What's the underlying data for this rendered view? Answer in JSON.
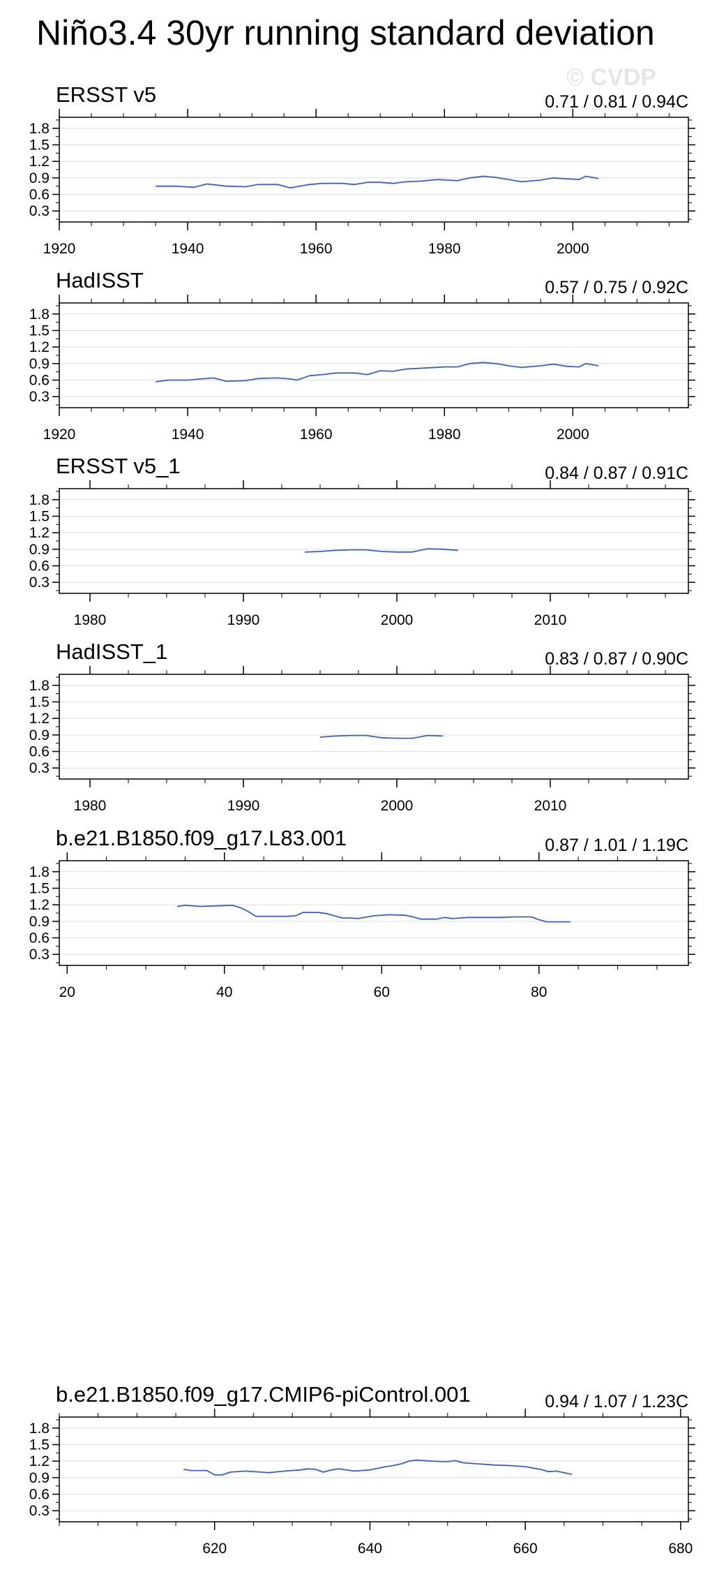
{
  "title": "Niño3.4 30yr running standard deviation",
  "watermark": "© CVDP",
  "colors": {
    "line": "#3a5fcd",
    "grid": "#dddddd",
    "frame": "#000000"
  },
  "chart_data": [
    {
      "type": "line",
      "title": "ERSST v5",
      "stats": "0.71 / 0.81 / 0.94C",
      "xlim": [
        1920,
        2018
      ],
      "ylim": [
        0.1,
        2.0
      ],
      "xticks": [
        1920,
        1940,
        1960,
        1980,
        2000
      ],
      "yticks": [
        0.3,
        0.6,
        0.9,
        1.2,
        1.5,
        1.8
      ],
      "ytick_labels": [
        "0.3",
        "0.6",
        "0.9",
        "1.2",
        "1.5",
        "1.8"
      ],
      "grid": true,
      "x": [
        1935,
        1938,
        1941,
        1943,
        1946,
        1949,
        1951,
        1954,
        1956,
        1957,
        1959,
        1961,
        1964,
        1966,
        1968,
        1970,
        1972,
        1974,
        1976,
        1979,
        1982,
        1984,
        1986,
        1988,
        1990,
        1992,
        1995,
        1997,
        1998,
        2001,
        2002,
        2004
      ],
      "y": [
        0.75,
        0.75,
        0.73,
        0.79,
        0.75,
        0.74,
        0.78,
        0.78,
        0.72,
        0.74,
        0.78,
        0.8,
        0.8,
        0.78,
        0.82,
        0.82,
        0.8,
        0.83,
        0.84,
        0.87,
        0.85,
        0.9,
        0.93,
        0.91,
        0.87,
        0.83,
        0.86,
        0.9,
        0.89,
        0.87,
        0.93,
        0.89
      ]
    },
    {
      "type": "line",
      "title": "HadISST",
      "stats": "0.57 / 0.75 / 0.92C",
      "xlim": [
        1920,
        2018
      ],
      "ylim": [
        0.1,
        2.0
      ],
      "xticks": [
        1920,
        1940,
        1960,
        1980,
        2000
      ],
      "yticks": [
        0.3,
        0.6,
        0.9,
        1.2,
        1.5,
        1.8
      ],
      "ytick_labels": [
        "0.3",
        "0.6",
        "0.9",
        "1.2",
        "1.5",
        "1.8"
      ],
      "grid": true,
      "x": [
        1935,
        1937,
        1940,
        1942,
        1944,
        1946,
        1949,
        1951,
        1954,
        1956,
        1957,
        1959,
        1961,
        1963,
        1966,
        1968,
        1970,
        1972,
        1974,
        1977,
        1980,
        1982,
        1984,
        1986,
        1988,
        1990,
        1992,
        1995,
        1997,
        1999,
        2001,
        2002,
        2004
      ],
      "y": [
        0.57,
        0.6,
        0.6,
        0.62,
        0.64,
        0.58,
        0.59,
        0.63,
        0.64,
        0.62,
        0.6,
        0.68,
        0.7,
        0.73,
        0.73,
        0.7,
        0.77,
        0.76,
        0.8,
        0.82,
        0.84,
        0.84,
        0.9,
        0.92,
        0.9,
        0.86,
        0.83,
        0.86,
        0.89,
        0.85,
        0.84,
        0.9,
        0.86
      ]
    },
    {
      "type": "line",
      "title": "ERSST v5_1",
      "stats": "0.84 / 0.87 / 0.91C",
      "xlim": [
        1978,
        2019
      ],
      "ylim": [
        0.1,
        2.0
      ],
      "xticks": [
        1980,
        1990,
        2000,
        2010
      ],
      "yticks": [
        0.3,
        0.6,
        0.9,
        1.2,
        1.5,
        1.8
      ],
      "ytick_labels": [
        "0.3",
        "0.6",
        "0.9",
        "1.2",
        "1.5",
        "1.8"
      ],
      "grid": true,
      "x": [
        1994,
        1995,
        1996,
        1997,
        1998,
        1999,
        2000,
        2001,
        2002,
        2003,
        2004
      ],
      "y": [
        0.85,
        0.86,
        0.88,
        0.89,
        0.89,
        0.86,
        0.85,
        0.85,
        0.91,
        0.9,
        0.88
      ]
    },
    {
      "type": "line",
      "title": "HadISST_1",
      "stats": "0.83 / 0.87 / 0.90C",
      "xlim": [
        1978,
        2019
      ],
      "ylim": [
        0.1,
        2.0
      ],
      "xticks": [
        1980,
        1990,
        2000,
        2010
      ],
      "yticks": [
        0.3,
        0.6,
        0.9,
        1.2,
        1.5,
        1.8
      ],
      "ytick_labels": [
        "0.3",
        "0.6",
        "0.9",
        "1.2",
        "1.5",
        "1.8"
      ],
      "grid": true,
      "x": [
        1995,
        1996,
        1997,
        1998,
        1999,
        2000,
        2001,
        2002,
        2003
      ],
      "y": [
        0.86,
        0.88,
        0.89,
        0.89,
        0.85,
        0.84,
        0.84,
        0.89,
        0.88
      ]
    },
    {
      "type": "line",
      "title": "b.e21.B1850.f09_g17.L83.001",
      "stats": "0.87 / 1.01 / 1.19C",
      "xlim": [
        19,
        99
      ],
      "ylim": [
        0.1,
        2.0
      ],
      "xticks": [
        20,
        40,
        60,
        80
      ],
      "yticks": [
        0.3,
        0.6,
        0.9,
        1.2,
        1.5,
        1.8
      ],
      "ytick_labels": [
        "0.3",
        "0.6",
        "0.9",
        "1.2",
        "1.5",
        "1.8"
      ],
      "grid": true,
      "x": [
        34,
        35,
        37,
        39,
        41,
        42,
        43,
        44,
        46,
        48,
        49,
        50,
        52,
        53,
        55,
        56,
        57,
        59,
        61,
        63,
        64,
        65,
        67,
        68,
        69,
        71,
        73,
        75,
        77,
        79,
        80,
        81,
        82,
        84
      ],
      "y": [
        1.17,
        1.19,
        1.17,
        1.18,
        1.19,
        1.15,
        1.08,
        0.99,
        0.99,
        0.99,
        1.0,
        1.06,
        1.06,
        1.04,
        0.96,
        0.96,
        0.95,
        1.0,
        1.02,
        1.01,
        0.98,
        0.94,
        0.94,
        0.97,
        0.95,
        0.97,
        0.97,
        0.97,
        0.98,
        0.98,
        0.93,
        0.89,
        0.89,
        0.89
      ]
    },
    {
      "type": "line",
      "title": "b.e21.B1850.f09_g17.CMIP6-piControl.001",
      "stats": "0.94 / 1.07 / 1.23C",
      "xlim": [
        600,
        681
      ],
      "ylim": [
        0.1,
        2.0
      ],
      "xticks": [
        620,
        640,
        660,
        680
      ],
      "yticks": [
        0.3,
        0.6,
        0.9,
        1.2,
        1.5,
        1.8
      ],
      "ytick_labels": [
        "0.3",
        "0.6",
        "0.9",
        "1.2",
        "1.5",
        "1.8"
      ],
      "grid": true,
      "x": [
        616,
        617,
        619,
        620,
        621,
        622,
        624,
        626,
        627,
        629,
        631,
        632,
        633,
        634,
        635,
        636,
        638,
        640,
        642,
        643,
        644,
        645,
        646,
        648,
        650,
        651,
        652,
        654,
        656,
        658,
        660,
        662,
        663,
        664,
        665,
        666
      ],
      "y": [
        1.05,
        1.03,
        1.03,
        0.95,
        0.95,
        1.0,
        1.02,
        1.0,
        0.99,
        1.02,
        1.04,
        1.06,
        1.05,
        1.0,
        1.04,
        1.06,
        1.02,
        1.04,
        1.1,
        1.12,
        1.15,
        1.2,
        1.22,
        1.2,
        1.19,
        1.21,
        1.17,
        1.15,
        1.13,
        1.12,
        1.1,
        1.05,
        1.01,
        1.02,
        0.99,
        0.96
      ]
    }
  ]
}
